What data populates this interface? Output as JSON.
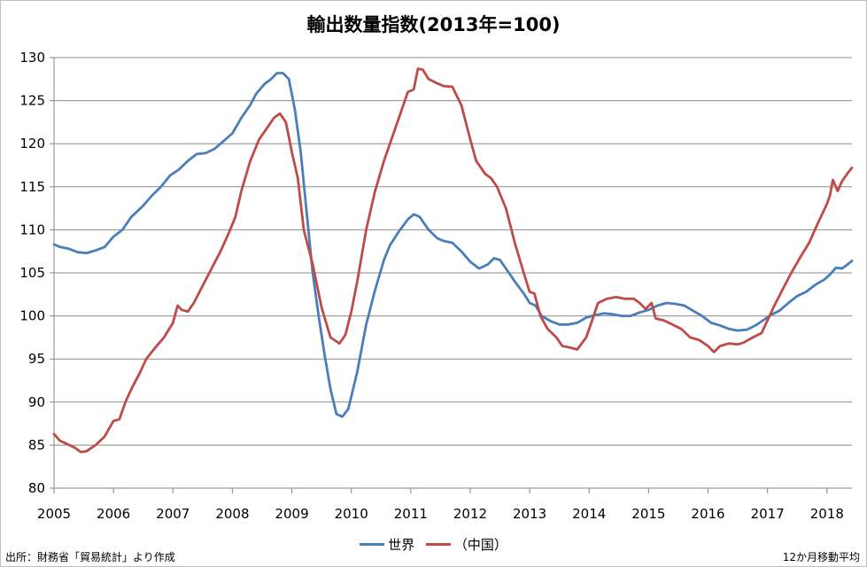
{
  "title": "輸出数量指数(2013年=100)",
  "source_note": "出所：財務省「貿易統計」より作成",
  "average_note": "12か月移動平均",
  "chart_data": {
    "type": "line",
    "title": "輸出数量指数(2013年=100)",
    "ylim": [
      80,
      130
    ],
    "yticks": [
      80,
      85,
      90,
      95,
      100,
      105,
      110,
      115,
      120,
      125,
      130
    ],
    "xlim": [
      2005.0,
      2018.42
    ],
    "xticks": [
      "2005",
      "2006",
      "2007",
      "2008",
      "2009",
      "2010",
      "2011",
      "2012",
      "2013",
      "2014",
      "2015",
      "2016",
      "2017",
      "2018"
    ],
    "grid": "horizontal",
    "legend": "bottom",
    "series": [
      {
        "name": "世界",
        "color": "#4a7ebb",
        "points": [
          [
            2005.0,
            108.3
          ],
          [
            2005.1,
            108.0
          ],
          [
            2005.25,
            107.8
          ],
          [
            2005.4,
            107.4
          ],
          [
            2005.55,
            107.3
          ],
          [
            2005.7,
            107.6
          ],
          [
            2005.85,
            108.0
          ],
          [
            2006.0,
            109.2
          ],
          [
            2006.15,
            110.0
          ],
          [
            2006.3,
            111.5
          ],
          [
            2006.5,
            112.8
          ],
          [
            2006.65,
            114.0
          ],
          [
            2006.8,
            115.0
          ],
          [
            2006.95,
            116.3
          ],
          [
            2007.1,
            117.0
          ],
          [
            2007.25,
            118.0
          ],
          [
            2007.4,
            118.8
          ],
          [
            2007.55,
            118.9
          ],
          [
            2007.7,
            119.4
          ],
          [
            2007.85,
            120.3
          ],
          [
            2008.0,
            121.2
          ],
          [
            2008.15,
            123.0
          ],
          [
            2008.3,
            124.5
          ],
          [
            2008.4,
            125.8
          ],
          [
            2008.55,
            127.0
          ],
          [
            2008.65,
            127.5
          ],
          [
            2008.75,
            128.2
          ],
          [
            2008.85,
            128.2
          ],
          [
            2008.95,
            127.5
          ],
          [
            2009.05,
            124.0
          ],
          [
            2009.15,
            119.0
          ],
          [
            2009.25,
            112.0
          ],
          [
            2009.35,
            105.0
          ],
          [
            2009.45,
            100.0
          ],
          [
            2009.55,
            95.5
          ],
          [
            2009.65,
            91.5
          ],
          [
            2009.75,
            88.6
          ],
          [
            2009.85,
            88.3
          ],
          [
            2009.95,
            89.2
          ],
          [
            2010.1,
            93.5
          ],
          [
            2010.25,
            99.0
          ],
          [
            2010.4,
            103.0
          ],
          [
            2010.55,
            106.5
          ],
          [
            2010.65,
            108.2
          ],
          [
            2010.8,
            109.8
          ],
          [
            2010.95,
            111.2
          ],
          [
            2011.05,
            111.8
          ],
          [
            2011.15,
            111.5
          ],
          [
            2011.3,
            110.0
          ],
          [
            2011.45,
            109.0
          ],
          [
            2011.55,
            108.7
          ],
          [
            2011.7,
            108.5
          ],
          [
            2011.85,
            107.5
          ],
          [
            2012.0,
            106.3
          ],
          [
            2012.15,
            105.5
          ],
          [
            2012.3,
            106.0
          ],
          [
            2012.4,
            106.7
          ],
          [
            2012.5,
            106.5
          ],
          [
            2012.6,
            105.5
          ],
          [
            2012.75,
            104.0
          ],
          [
            2012.9,
            102.6
          ],
          [
            2013.0,
            101.5
          ],
          [
            2013.1,
            101.2
          ],
          [
            2013.2,
            100.0
          ],
          [
            2013.35,
            99.4
          ],
          [
            2013.5,
            99.0
          ],
          [
            2013.65,
            99.0
          ],
          [
            2013.8,
            99.2
          ],
          [
            2013.95,
            99.8
          ],
          [
            2014.1,
            100.1
          ],
          [
            2014.25,
            100.3
          ],
          [
            2014.4,
            100.2
          ],
          [
            2014.55,
            100.0
          ],
          [
            2014.7,
            100.0
          ],
          [
            2014.85,
            100.4
          ],
          [
            2015.0,
            100.7
          ],
          [
            2015.15,
            101.2
          ],
          [
            2015.3,
            101.5
          ],
          [
            2015.45,
            101.4
          ],
          [
            2015.6,
            101.2
          ],
          [
            2015.75,
            100.6
          ],
          [
            2015.9,
            100.0
          ],
          [
            2016.05,
            99.2
          ],
          [
            2016.2,
            98.9
          ],
          [
            2016.35,
            98.5
          ],
          [
            2016.5,
            98.3
          ],
          [
            2016.65,
            98.4
          ],
          [
            2016.8,
            98.9
          ],
          [
            2016.95,
            99.6
          ],
          [
            2017.05,
            100.1
          ],
          [
            2017.2,
            100.6
          ],
          [
            2017.35,
            101.5
          ],
          [
            2017.5,
            102.3
          ],
          [
            2017.65,
            102.8
          ],
          [
            2017.8,
            103.6
          ],
          [
            2017.95,
            104.2
          ],
          [
            2018.05,
            104.8
          ],
          [
            2018.15,
            105.6
          ],
          [
            2018.25,
            105.5
          ],
          [
            2018.35,
            106.0
          ],
          [
            2018.42,
            106.4
          ]
        ]
      },
      {
        "name": "（中国）",
        "color": "#be4b48",
        "points": [
          [
            2005.0,
            86.3
          ],
          [
            2005.1,
            85.5
          ],
          [
            2005.2,
            85.2
          ],
          [
            2005.35,
            84.7
          ],
          [
            2005.45,
            84.2
          ],
          [
            2005.55,
            84.3
          ],
          [
            2005.7,
            85.0
          ],
          [
            2005.85,
            86.0
          ],
          [
            2006.0,
            87.8
          ],
          [
            2006.1,
            88.0
          ],
          [
            2006.2,
            90.0
          ],
          [
            2006.3,
            91.5
          ],
          [
            2006.45,
            93.5
          ],
          [
            2006.55,
            95.0
          ],
          [
            2006.7,
            96.3
          ],
          [
            2006.85,
            97.5
          ],
          [
            2007.0,
            99.2
          ],
          [
            2007.08,
            101.2
          ],
          [
            2007.15,
            100.7
          ],
          [
            2007.25,
            100.5
          ],
          [
            2007.35,
            101.5
          ],
          [
            2007.5,
            103.5
          ],
          [
            2007.65,
            105.5
          ],
          [
            2007.8,
            107.5
          ],
          [
            2007.95,
            109.8
          ],
          [
            2008.05,
            111.5
          ],
          [
            2008.15,
            114.5
          ],
          [
            2008.3,
            118.0
          ],
          [
            2008.45,
            120.5
          ],
          [
            2008.6,
            122.0
          ],
          [
            2008.7,
            123.0
          ],
          [
            2008.8,
            123.5
          ],
          [
            2008.9,
            122.5
          ],
          [
            2009.0,
            119.0
          ],
          [
            2009.1,
            116.0
          ],
          [
            2009.2,
            110.0
          ],
          [
            2009.35,
            106.0
          ],
          [
            2009.5,
            101.0
          ],
          [
            2009.65,
            97.5
          ],
          [
            2009.8,
            96.8
          ],
          [
            2009.9,
            97.8
          ],
          [
            2010.0,
            100.5
          ],
          [
            2010.1,
            104.0
          ],
          [
            2010.25,
            110.0
          ],
          [
            2010.4,
            114.5
          ],
          [
            2010.55,
            118.0
          ],
          [
            2010.7,
            121.0
          ],
          [
            2010.85,
            124.0
          ],
          [
            2010.95,
            126.0
          ],
          [
            2011.05,
            126.3
          ],
          [
            2011.12,
            128.7
          ],
          [
            2011.2,
            128.6
          ],
          [
            2011.3,
            127.5
          ],
          [
            2011.45,
            127.0
          ],
          [
            2011.55,
            126.7
          ],
          [
            2011.7,
            126.6
          ],
          [
            2011.85,
            124.5
          ],
          [
            2012.0,
            120.5
          ],
          [
            2012.1,
            118.0
          ],
          [
            2012.25,
            116.5
          ],
          [
            2012.35,
            116.0
          ],
          [
            2012.45,
            115.0
          ],
          [
            2012.6,
            112.5
          ],
          [
            2012.75,
            108.5
          ],
          [
            2012.9,
            105.0
          ],
          [
            2013.0,
            102.8
          ],
          [
            2013.08,
            102.6
          ],
          [
            2013.18,
            100.0
          ],
          [
            2013.3,
            98.5
          ],
          [
            2013.45,
            97.5
          ],
          [
            2013.55,
            96.5
          ],
          [
            2013.7,
            96.3
          ],
          [
            2013.8,
            96.1
          ],
          [
            2013.95,
            97.5
          ],
          [
            2014.05,
            99.5
          ],
          [
            2014.15,
            101.5
          ],
          [
            2014.3,
            102.0
          ],
          [
            2014.45,
            102.2
          ],
          [
            2014.6,
            102.0
          ],
          [
            2014.75,
            102.0
          ],
          [
            2014.85,
            101.5
          ],
          [
            2014.95,
            100.8
          ],
          [
            2015.05,
            101.5
          ],
          [
            2015.12,
            99.7
          ],
          [
            2015.25,
            99.5
          ],
          [
            2015.4,
            99.0
          ],
          [
            2015.55,
            98.5
          ],
          [
            2015.7,
            97.5
          ],
          [
            2015.85,
            97.2
          ],
          [
            2016.0,
            96.5
          ],
          [
            2016.1,
            95.8
          ],
          [
            2016.2,
            96.5
          ],
          [
            2016.35,
            96.8
          ],
          [
            2016.5,
            96.7
          ],
          [
            2016.6,
            96.9
          ],
          [
            2016.75,
            97.5
          ],
          [
            2016.9,
            98.0
          ],
          [
            2017.0,
            99.5
          ],
          [
            2017.1,
            101.0
          ],
          [
            2017.25,
            103.0
          ],
          [
            2017.4,
            105.0
          ],
          [
            2017.55,
            106.8
          ],
          [
            2017.7,
            108.5
          ],
          [
            2017.85,
            110.8
          ],
          [
            2018.0,
            113.0
          ],
          [
            2018.05,
            114.0
          ],
          [
            2018.1,
            115.8
          ],
          [
            2018.18,
            114.5
          ],
          [
            2018.25,
            115.6
          ],
          [
            2018.35,
            116.6
          ],
          [
            2018.42,
            117.2
          ]
        ]
      }
    ]
  }
}
